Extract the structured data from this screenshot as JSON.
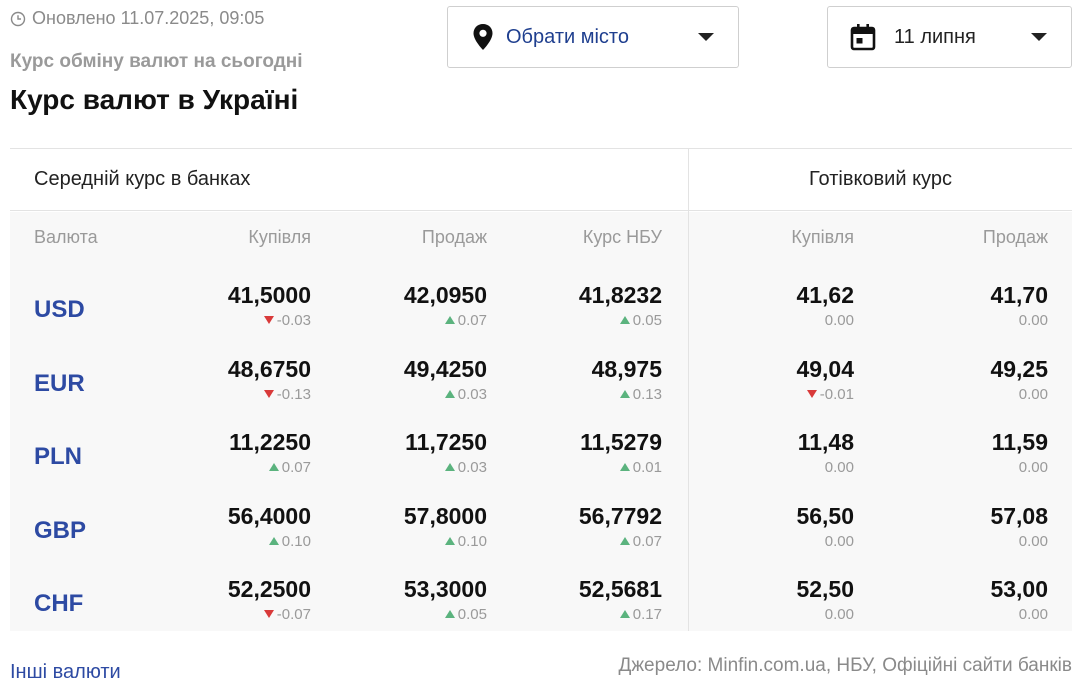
{
  "header": {
    "updated": "Оновлено 11.07.2025, 09:05",
    "subtitle": "Курс обміну валют на сьогодні",
    "title": "Курс валют в Україні"
  },
  "filters": {
    "city_label": "Обрати місто",
    "date_label": "11 липня"
  },
  "table": {
    "group_left": "Середній курс в банках",
    "group_right": "Готівковий курс",
    "columns": {
      "currency": "Валюта",
      "bank_buy": "Купівля",
      "bank_sell": "Продаж",
      "nbu": "Курс НБУ",
      "cash_buy": "Купівля",
      "cash_sell": "Продаж"
    },
    "rows": [
      {
        "code": "USD",
        "bank_buy": {
          "value": "41,5000",
          "change": "-0.03",
          "dir": "down"
        },
        "bank_sell": {
          "value": "42,0950",
          "change": "0.07",
          "dir": "up"
        },
        "nbu": {
          "value": "41,8232",
          "change": "0.05",
          "dir": "up"
        },
        "cash_buy": {
          "value": "41,62",
          "change": "0.00",
          "dir": "none"
        },
        "cash_sell": {
          "value": "41,70",
          "change": "0.00",
          "dir": "none"
        }
      },
      {
        "code": "EUR",
        "bank_buy": {
          "value": "48,6750",
          "change": "-0.13",
          "dir": "down"
        },
        "bank_sell": {
          "value": "49,4250",
          "change": "0.03",
          "dir": "up"
        },
        "nbu": {
          "value": "48,975",
          "change": "0.13",
          "dir": "up"
        },
        "cash_buy": {
          "value": "49,04",
          "change": "-0.01",
          "dir": "down"
        },
        "cash_sell": {
          "value": "49,25",
          "change": "0.00",
          "dir": "none"
        }
      },
      {
        "code": "PLN",
        "bank_buy": {
          "value": "11,2250",
          "change": "0.07",
          "dir": "up"
        },
        "bank_sell": {
          "value": "11,7250",
          "change": "0.03",
          "dir": "up"
        },
        "nbu": {
          "value": "11,5279",
          "change": "0.01",
          "dir": "up"
        },
        "cash_buy": {
          "value": "11,48",
          "change": "0.00",
          "dir": "none"
        },
        "cash_sell": {
          "value": "11,59",
          "change": "0.00",
          "dir": "none"
        }
      },
      {
        "code": "GBP",
        "bank_buy": {
          "value": "56,4000",
          "change": "0.10",
          "dir": "up"
        },
        "bank_sell": {
          "value": "57,8000",
          "change": "0.10",
          "dir": "up"
        },
        "nbu": {
          "value": "56,7792",
          "change": "0.07",
          "dir": "up"
        },
        "cash_buy": {
          "value": "56,50",
          "change": "0.00",
          "dir": "none"
        },
        "cash_sell": {
          "value": "57,08",
          "change": "0.00",
          "dir": "none"
        }
      },
      {
        "code": "CHF",
        "bank_buy": {
          "value": "52,2500",
          "change": "-0.07",
          "dir": "down"
        },
        "bank_sell": {
          "value": "53,3000",
          "change": "0.05",
          "dir": "up"
        },
        "nbu": {
          "value": "52,5681",
          "change": "0.17",
          "dir": "up"
        },
        "cash_buy": {
          "value": "52,50",
          "change": "0.00",
          "dir": "none"
        },
        "cash_sell": {
          "value": "53,00",
          "change": "0.00",
          "dir": "none"
        }
      }
    ]
  },
  "footer": {
    "other_currencies": "Інші валюти",
    "source": "Джерело: Minfin.com.ua, НБУ, Офіційні сайти банків"
  },
  "icons": {
    "updated": "clock-icon",
    "city": "map-pin-icon",
    "date": "calendar-icon",
    "dropdown": "caret-down-icon",
    "change_up": "triangle-up-icon",
    "change_down": "triangle-down-icon"
  },
  "colors": {
    "accent": "#2d4aa3",
    "up": "#5bb37e",
    "down": "#d93a3a",
    "muted": "#9a9a9a"
  }
}
